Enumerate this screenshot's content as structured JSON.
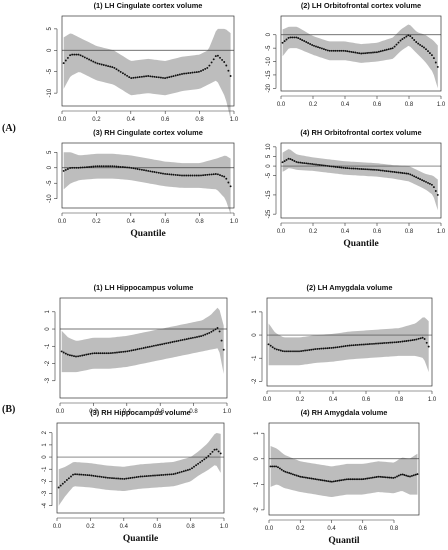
{
  "section_labels": [
    "(A)",
    "(B)"
  ],
  "chart_data": [
    {
      "type": "scatter",
      "section": "(A)",
      "title": "(1) LH Cingulate cortex volume",
      "xlabel": "",
      "xlim": [
        0,
        1
      ],
      "ylim": [
        -13,
        8
      ],
      "xticks": [
        0.0,
        0.2,
        0.4,
        0.6,
        0.8,
        1.0
      ],
      "xtick_labels": [
        "0.0",
        "0.2",
        "0.4",
        "0.6",
        "0.8",
        "1.0"
      ],
      "yticks": [
        5,
        0,
        -5,
        -10
      ],
      "ytick_labels": [
        "5",
        "0",
        "-5",
        "-10"
      ],
      "reference_line": 0,
      "series_knots": {
        "x": [
          0.01,
          0.05,
          0.1,
          0.2,
          0.3,
          0.4,
          0.5,
          0.6,
          0.7,
          0.8,
          0.85,
          0.9,
          0.95,
          0.98
        ],
        "y": [
          -3,
          -1,
          -1,
          -3,
          -4,
          -6.5,
          -6,
          -6.5,
          -5.5,
          -5,
          -4,
          -1,
          -3,
          -6
        ]
      },
      "band_halfwidth": [
        6,
        5,
        4,
        4,
        4,
        4,
        4,
        4,
        4,
        4,
        4,
        6,
        8,
        10
      ]
    },
    {
      "type": "scatter",
      "section": "(A)",
      "title": "(2) LH Orbitofrontal cortex volume",
      "xlabel": "",
      "xlim": [
        0,
        1
      ],
      "ylim": [
        -21,
        7
      ],
      "xticks": [
        0.0,
        0.2,
        0.4,
        0.6,
        0.8,
        1.0
      ],
      "xtick_labels": [
        "0.0",
        "0.2",
        "0.4",
        "0.6",
        "0.8",
        "1.0"
      ],
      "yticks": [
        0,
        -5,
        -10,
        -15,
        -20
      ],
      "ytick_labels": [
        "0",
        "-5",
        "-10",
        "-15",
        "-20"
      ],
      "reference_line": 0,
      "series_knots": {
        "x": [
          0.01,
          0.05,
          0.1,
          0.2,
          0.3,
          0.4,
          0.5,
          0.6,
          0.7,
          0.75,
          0.8,
          0.85,
          0.9,
          0.95,
          0.98
        ],
        "y": [
          -3,
          -1,
          -1,
          -4,
          -6,
          -6,
          -7,
          -6.5,
          -5,
          -2,
          0,
          -3,
          -5,
          -8,
          -12
        ]
      },
      "band_halfwidth": [
        5,
        4,
        4,
        3.5,
        3.5,
        3.5,
        3.5,
        3.5,
        4,
        4,
        4,
        4,
        5,
        6,
        8
      ]
    },
    {
      "type": "scatter",
      "section": "(A)",
      "title": "(3) RH Cingulate cortex volume",
      "xlabel": "Quantile",
      "xlim": [
        0,
        1
      ],
      "ylim": [
        -13,
        8
      ],
      "xticks": [
        0.0,
        0.2,
        0.4,
        0.6,
        0.8,
        1.0
      ],
      "xtick_labels": [
        "0.0",
        "0.2",
        "0.4",
        "0.6",
        "0.8",
        "1.0"
      ],
      "yticks": [
        5,
        0,
        -5,
        -10
      ],
      "ytick_labels": [
        "5",
        "0",
        "-5",
        "-10"
      ],
      "reference_line": 0,
      "series_knots": {
        "x": [
          0.01,
          0.05,
          0.1,
          0.2,
          0.3,
          0.4,
          0.5,
          0.6,
          0.7,
          0.8,
          0.9,
          0.95,
          0.98
        ],
        "y": [
          -1,
          0,
          0,
          0.5,
          0.5,
          0,
          -1,
          -2,
          -2.5,
          -2.5,
          -2,
          -3,
          -6
        ]
      },
      "band_halfwidth": [
        6,
        5,
        4,
        4,
        4,
        4,
        4,
        4,
        4,
        4,
        5,
        7,
        9
      ]
    },
    {
      "type": "scatter",
      "section": "(A)",
      "title": "(4) RH Orbitofrontal cortex volume",
      "xlabel": "Quantile",
      "xlim": [
        0,
        1
      ],
      "ylim": [
        -27,
        12
      ],
      "xticks": [
        0.0,
        0.2,
        0.4,
        0.6,
        0.8,
        1.0
      ],
      "xtick_labels": [
        "0.0",
        "0.2",
        "0.4",
        "0.6",
        "0.8",
        "1.0"
      ],
      "yticks": [
        10,
        5,
        0,
        -5,
        -15,
        -25
      ],
      "ytick_labels": [
        "10",
        "5",
        "0",
        "-5",
        "-15",
        "-25"
      ],
      "reference_line": 0,
      "series_knots": {
        "x": [
          0.01,
          0.05,
          0.1,
          0.2,
          0.3,
          0.4,
          0.5,
          0.6,
          0.7,
          0.8,
          0.85,
          0.9,
          0.95,
          0.98
        ],
        "y": [
          2,
          4,
          2,
          1,
          0,
          -1,
          -1.5,
          -2,
          -3,
          -4,
          -6,
          -8,
          -10,
          -15
        ]
      },
      "band_halfwidth": [
        5,
        5,
        4,
        3.5,
        3.5,
        3.5,
        3.5,
        3.5,
        3.5,
        4,
        4,
        4,
        5,
        8
      ]
    },
    {
      "type": "scatter",
      "section": "(B)",
      "title": "(1) LH Hippocampus volume",
      "xlabel": "",
      "xlim": [
        0,
        1
      ],
      "ylim": [
        -4,
        1.8
      ],
      "xticks": [
        0.0,
        0.2,
        0.4,
        0.6,
        0.8,
        1.0
      ],
      "xtick_labels": [
        "0.0",
        "0.2",
        "0.4",
        "0.6",
        "0.8",
        "1.0"
      ],
      "yticks": [
        1,
        0,
        -1,
        -2,
        -3
      ],
      "ytick_labels": [
        "1",
        "0",
        "-1",
        "-2",
        "-3"
      ],
      "reference_line": 0,
      "series_knots": {
        "x": [
          0.01,
          0.05,
          0.1,
          0.2,
          0.3,
          0.4,
          0.5,
          0.6,
          0.7,
          0.8,
          0.85,
          0.9,
          0.95,
          0.98
        ],
        "y": [
          -1.3,
          -1.5,
          -1.6,
          -1.4,
          -1.4,
          -1.3,
          -1.1,
          -0.9,
          -0.7,
          -0.5,
          -0.4,
          -0.2,
          0.1,
          -1.2
        ]
      },
      "band_halfwidth": [
        1.2,
        1,
        0.9,
        0.9,
        0.9,
        0.9,
        0.9,
        0.9,
        0.9,
        0.9,
        0.9,
        1,
        1.2,
        1.4
      ]
    },
    {
      "type": "scatter",
      "section": "(B)",
      "title": "(2) LH Amygdala volume",
      "xlabel": "",
      "xlim": [
        0,
        1
      ],
      "ylim": [
        -2.2,
        1.6
      ],
      "xticks": [
        0.0,
        0.2,
        0.4,
        0.6,
        0.8,
        1.0
      ],
      "xtick_labels": [
        "0.0",
        "0.2",
        "0.4",
        "0.6",
        "0.8",
        "1.0"
      ],
      "yticks": [
        1,
        0,
        -1,
        -2
      ],
      "ytick_labels": [
        "1",
        "0",
        "-1",
        "-2"
      ],
      "reference_line": 0,
      "series_knots": {
        "x": [
          0.01,
          0.05,
          0.1,
          0.2,
          0.3,
          0.4,
          0.5,
          0.6,
          0.7,
          0.8,
          0.9,
          0.95,
          0.98
        ],
        "y": [
          -0.4,
          -0.6,
          -0.7,
          -0.7,
          -0.6,
          -0.55,
          -0.45,
          -0.4,
          -0.35,
          -0.3,
          -0.2,
          -0.1,
          -0.5
        ]
      },
      "band_halfwidth": [
        0.9,
        0.7,
        0.6,
        0.6,
        0.6,
        0.6,
        0.6,
        0.6,
        0.6,
        0.6,
        0.7,
        0.9,
        1.1
      ]
    },
    {
      "type": "scatter",
      "section": "(B)",
      "title": "(3) RH Hippocampus volume",
      "xlabel": "Quantile",
      "xlim": [
        0,
        1
      ],
      "ylim": [
        -4.6,
        2.8
      ],
      "xticks": [
        0.0,
        0.2,
        0.4,
        0.6,
        0.8,
        1.0
      ],
      "xtick_labels": [
        "0.0",
        "0.2",
        "0.4",
        "0.6",
        "0.8",
        "1.0"
      ],
      "yticks": [
        2,
        1,
        0,
        -1,
        -2,
        -3,
        -4
      ],
      "ytick_labels": [
        "2",
        "1",
        "0",
        "-1",
        "-2",
        "-3",
        "-4"
      ],
      "reference_line": 0,
      "series_knots": {
        "x": [
          0.01,
          0.05,
          0.1,
          0.2,
          0.3,
          0.4,
          0.5,
          0.6,
          0.7,
          0.8,
          0.85,
          0.9,
          0.95,
          0.98
        ],
        "y": [
          -2.5,
          -2,
          -1.4,
          -1.5,
          -1.7,
          -1.8,
          -1.6,
          -1.5,
          -1.4,
          -1,
          -0.5,
          0,
          0.7,
          0.3
        ]
      },
      "band_halfwidth": [
        1.5,
        1.2,
        1,
        1,
        1,
        1,
        1,
        1,
        1,
        1,
        1,
        1.1,
        1.3,
        1.6
      ]
    },
    {
      "type": "scatter",
      "section": "(B)",
      "title": "(4) RH Amygdala volume",
      "xlabel": "Quantil",
      "xlim": [
        0,
        0.96
      ],
      "ylim": [
        -2.2,
        1.4
      ],
      "xticks": [
        0.0,
        0.2,
        0.4,
        0.6,
        0.8
      ],
      "xtick_labels": [
        "0.0",
        "0.2",
        "0.4",
        "0.6",
        "0.8"
      ],
      "yticks": [
        1,
        0,
        -1,
        -2
      ],
      "ytick_labels": [
        "1",
        "0",
        "-1",
        "-2"
      ],
      "reference_line": 0,
      "series_knots": {
        "x": [
          0.01,
          0.05,
          0.1,
          0.2,
          0.3,
          0.4,
          0.5,
          0.6,
          0.7,
          0.8,
          0.85,
          0.9,
          0.95
        ],
        "y": [
          -0.3,
          -0.3,
          -0.5,
          -0.7,
          -0.8,
          -0.9,
          -0.8,
          -0.8,
          -0.7,
          -0.75,
          -0.6,
          -0.7,
          -0.6
        ]
      },
      "band_halfwidth": [
        0.8,
        0.7,
        0.65,
        0.6,
        0.6,
        0.6,
        0.6,
        0.6,
        0.6,
        0.6,
        0.65,
        0.7,
        0.8
      ]
    }
  ]
}
